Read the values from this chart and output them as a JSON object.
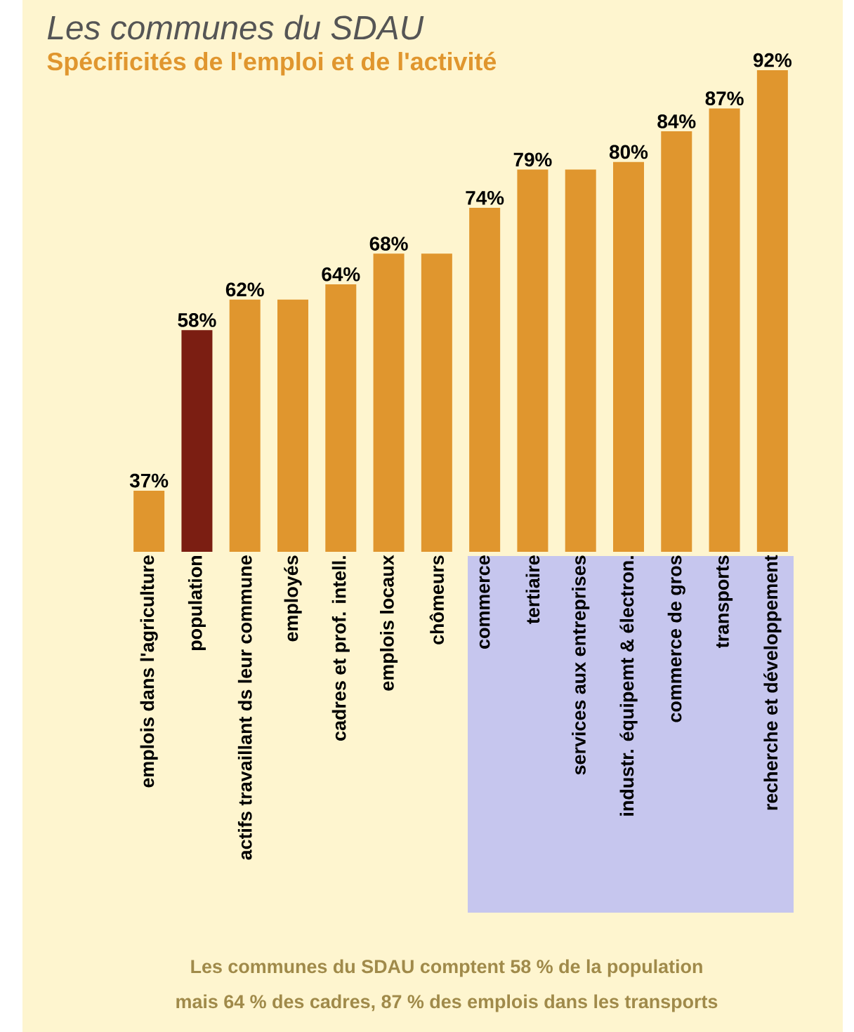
{
  "chart_data": {
    "type": "bar",
    "title": "Les communes du SDAU",
    "subtitle": "Spécificités de l'emploi et de l'activité",
    "categories": [
      "emplois dans l'agriculture",
      "population",
      "actifs travaillant ds leur commune",
      "employés",
      "cadres et prof. intell.",
      "emplois locaux",
      "chômeurs",
      "commerce",
      "tertiaire",
      "services aux entreprises",
      "industr. équipemt & électron.",
      "commerce de gros",
      "transports",
      "recherche et développement"
    ],
    "values": [
      37,
      58,
      62,
      62,
      64,
      68,
      68,
      74,
      79,
      79,
      80,
      84,
      87,
      92
    ],
    "value_labels": [
      "37%",
      "58%",
      "62%",
      null,
      "64%",
      "68%",
      null,
      "74%",
      "79%",
      null,
      "80%",
      "84%",
      "87%",
      "92%"
    ],
    "colors": [
      "#e0962e",
      "#7b1e12",
      "#e0962e",
      "#e0962e",
      "#e0962e",
      "#e0962e",
      "#e0962e",
      "#e0962e",
      "#e0962e",
      "#e0962e",
      "#e0962e",
      "#e0962e",
      "#e0962e",
      "#e0962e"
    ],
    "ylim": [
      29,
      92
    ],
    "annotations": [
      "Les communes du SDAU comptent 58 % de la population",
      "mais 64 % des cadres, 87 % des emplois dans les transports"
    ]
  }
}
